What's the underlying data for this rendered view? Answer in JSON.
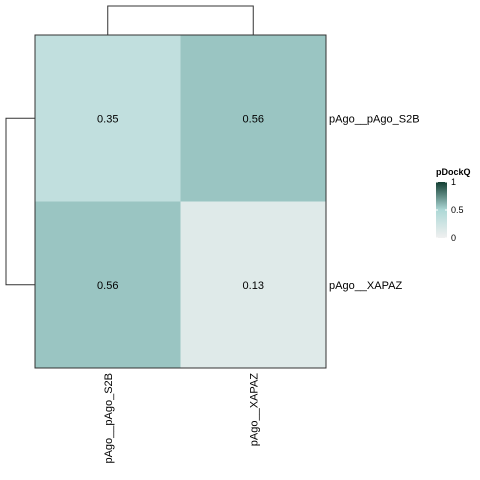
{
  "chart_data": {
    "type": "heatmap",
    "rows": [
      "pAgo__pAgo_S2B",
      "pAgo__XAPAZ"
    ],
    "cols": [
      "pAgo__pAgo_S2B",
      "pAgo__XAPAZ"
    ],
    "values": [
      [
        0.35,
        0.56
      ],
      [
        0.56,
        0.13
      ]
    ],
    "cell_labels": [
      [
        "0.35",
        "0.56"
      ],
      [
        "0.56",
        "0.13"
      ]
    ],
    "legend": {
      "title": "pDockQ",
      "ticks": [
        {
          "value": 1,
          "label": "1"
        },
        {
          "value": 0.5,
          "label": "0.5"
        },
        {
          "value": 0,
          "label": "0"
        }
      ],
      "range": [
        0,
        1
      ],
      "colors": {
        "low": "#f0f0f0",
        "mid": "#add8d6",
        "high": "#123d31"
      }
    },
    "dendrograms": {
      "rows": true,
      "cols": true
    }
  }
}
